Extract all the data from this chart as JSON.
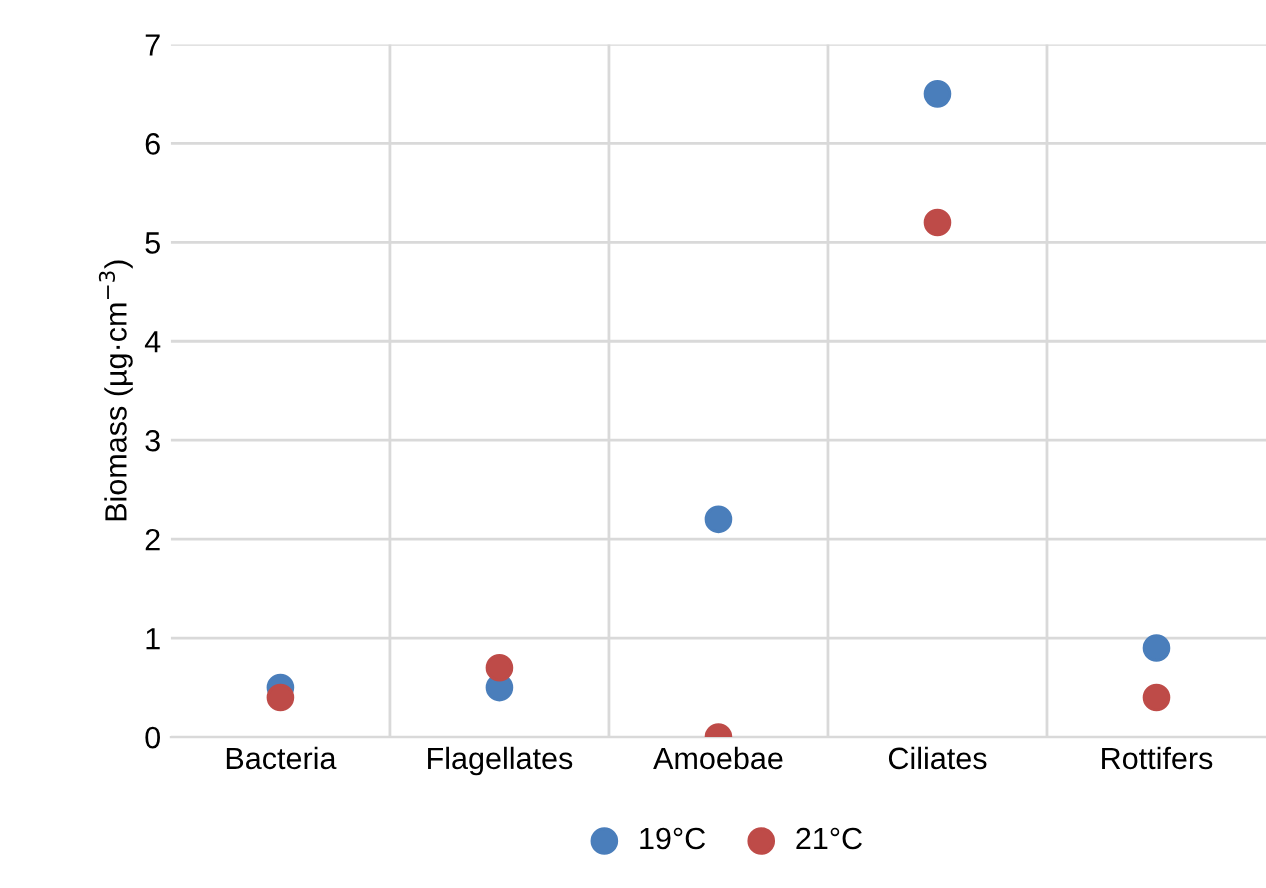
{
  "chart_data": {
    "type": "scatter",
    "ylabel": "Biomass (µg·cm$^{−3}$)",
    "categories": [
      "Bacteria",
      "Flagellates",
      "Amoebae",
      "Ciliates",
      "Rottifers"
    ],
    "series": [
      {
        "name": "19°C",
        "color": "#4a7ebb",
        "values": [
          0.5,
          0.5,
          2.2,
          6.5,
          0.9
        ]
      },
      {
        "name": "21°C",
        "color": "#be4b48",
        "values": [
          0.4,
          0.7,
          0.0,
          5.2,
          0.4
        ]
      }
    ],
    "ylim": [
      0,
      7
    ],
    "yticks": [
      0,
      1,
      2,
      3,
      4,
      5,
      6,
      7
    ],
    "grid": true,
    "legend": "bottom",
    "marker": "circle"
  }
}
